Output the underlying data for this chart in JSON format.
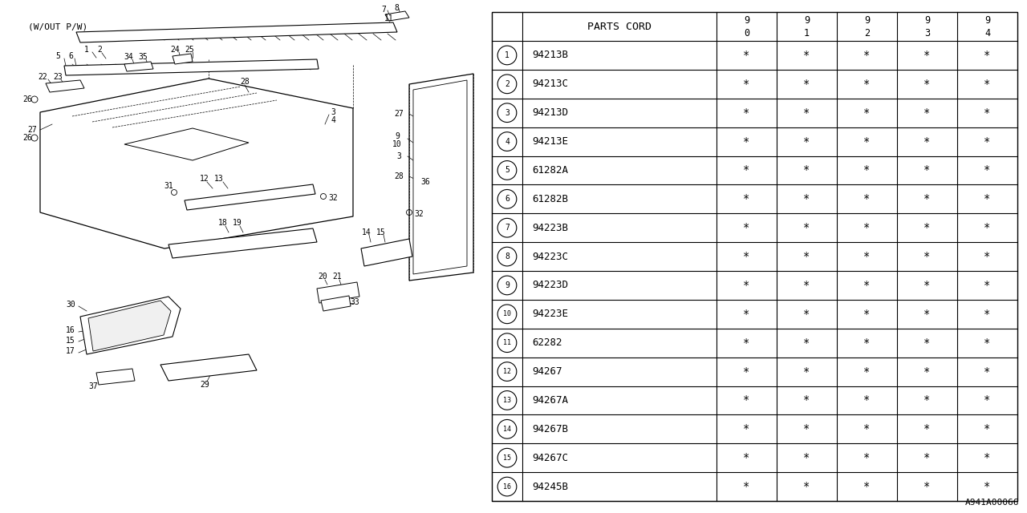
{
  "subtitle": "(W/OUT P/W)",
  "diagram_code": "A941A00066",
  "bg_color": "#ffffff",
  "rows": [
    {
      "num": 1,
      "part": "94213B",
      "vals": [
        "*",
        "*",
        "*",
        "*",
        "*"
      ]
    },
    {
      "num": 2,
      "part": "94213C",
      "vals": [
        "*",
        "*",
        "*",
        "*",
        "*"
      ]
    },
    {
      "num": 3,
      "part": "94213D",
      "vals": [
        "*",
        "*",
        "*",
        "*",
        "*"
      ]
    },
    {
      "num": 4,
      "part": "94213E",
      "vals": [
        "*",
        "*",
        "*",
        "*",
        "*"
      ]
    },
    {
      "num": 5,
      "part": "61282A",
      "vals": [
        "*",
        "*",
        "*",
        "*",
        "*"
      ]
    },
    {
      "num": 6,
      "part": "61282B",
      "vals": [
        "*",
        "*",
        "*",
        "*",
        "*"
      ]
    },
    {
      "num": 7,
      "part": "94223B",
      "vals": [
        "*",
        "*",
        "*",
        "*",
        "*"
      ]
    },
    {
      "num": 8,
      "part": "94223C",
      "vals": [
        "*",
        "*",
        "*",
        "*",
        "*"
      ]
    },
    {
      "num": 9,
      "part": "94223D",
      "vals": [
        "*",
        "*",
        "*",
        "*",
        "*"
      ]
    },
    {
      "num": 10,
      "part": "94223E",
      "vals": [
        "*",
        "*",
        "*",
        "*",
        "*"
      ]
    },
    {
      "num": 11,
      "part": "62282",
      "vals": [
        "*",
        "*",
        "*",
        "*",
        "*"
      ]
    },
    {
      "num": 12,
      "part": "94267",
      "vals": [
        "*",
        "*",
        "*",
        "*",
        "*"
      ]
    },
    {
      "num": 13,
      "part": "94267A",
      "vals": [
        "*",
        "*",
        "*",
        "*",
        "*"
      ]
    },
    {
      "num": 14,
      "part": "94267B",
      "vals": [
        "*",
        "*",
        "*",
        "*",
        "*"
      ]
    },
    {
      "num": 15,
      "part": "94267C",
      "vals": [
        "*",
        "*",
        "*",
        "*",
        "*"
      ]
    },
    {
      "num": 16,
      "part": "94245B",
      "vals": [
        "*",
        "*",
        "*",
        "*",
        "*"
      ]
    }
  ],
  "line_color": "#000000",
  "text_color": "#000000"
}
